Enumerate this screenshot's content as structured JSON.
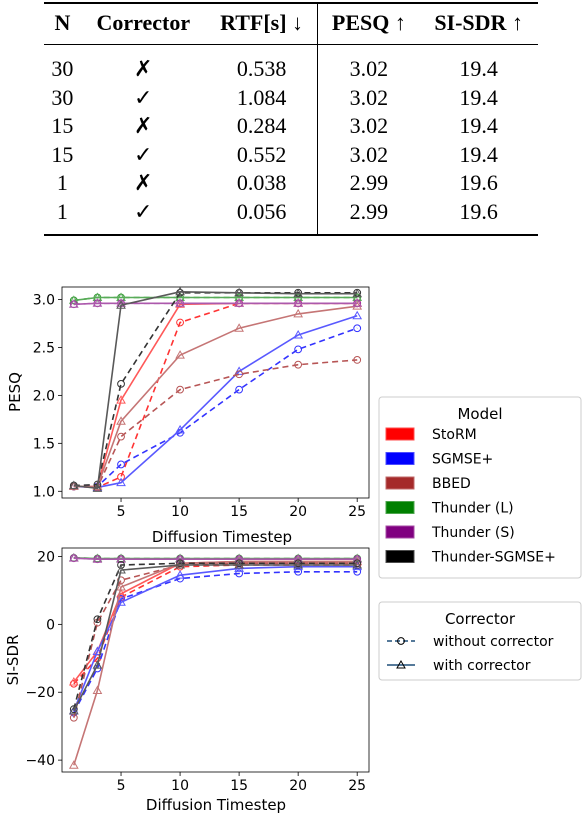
{
  "table": {
    "headers": [
      "N",
      "Corrector",
      "RTF[s] ↓",
      "PESQ ↑",
      "SI-SDR ↑"
    ],
    "rows": [
      [
        "30",
        "✗",
        "0.538",
        "3.02",
        "19.4"
      ],
      [
        "30",
        "✓",
        "1.084",
        "3.02",
        "19.4"
      ],
      [
        "15",
        "✗",
        "0.284",
        "3.02",
        "19.4"
      ],
      [
        "15",
        "✓",
        "0.552",
        "3.02",
        "19.4"
      ],
      [
        "1",
        "✗",
        "0.038",
        "2.99",
        "19.6"
      ],
      [
        "1",
        "✓",
        "0.056",
        "2.99",
        "19.6"
      ]
    ]
  },
  "legend_model": {
    "title": "Model",
    "items": [
      {
        "label": "StoRM",
        "color": "#ff0000"
      },
      {
        "label": "SGMSE+",
        "color": "#0000ff"
      },
      {
        "label": "BBED",
        "color": "#a52a2a"
      },
      {
        "label": "Thunder (L)",
        "color": "#008000"
      },
      {
        "label": "Thunder (S)",
        "color": "#800080"
      },
      {
        "label": "Thunder-SGMSE+",
        "color": "#000000"
      }
    ]
  },
  "legend_corrector": {
    "title": "Corrector",
    "items": [
      {
        "label": "without corrector",
        "style": "dashed",
        "marker": "circle"
      },
      {
        "label": "with corrector",
        "style": "solid",
        "marker": "triangle"
      }
    ]
  },
  "chart_data": [
    {
      "type": "line",
      "title": "",
      "xlabel": "Diffusion Timestep",
      "ylabel": "PESQ",
      "xlim": [
        0,
        26
      ],
      "ylim": [
        0.93,
        3.13
      ],
      "xticks": [
        5,
        10,
        15,
        20,
        25
      ],
      "yticks": [
        1.0,
        1.5,
        2.0,
        2.5,
        3.0
      ],
      "ytick_labels": [
        "1.0",
        "1.5",
        "2.0",
        "2.5",
        "3.0"
      ],
      "x": [
        1,
        3,
        5,
        10,
        15,
        20,
        25
      ],
      "series": [
        {
          "name": "StoRM",
          "corrector": "without corrector",
          "color": "#ff0000",
          "values": [
            1.05,
            1.04,
            1.15,
            2.76,
            2.96,
            2.96,
            2.96
          ]
        },
        {
          "name": "StoRM",
          "corrector": "with corrector",
          "color": "#ff0000",
          "values": [
            1.05,
            1.05,
            1.95,
            2.95,
            2.96,
            2.96,
            2.96
          ]
        },
        {
          "name": "SGMSE+",
          "corrector": "without corrector",
          "color": "#0000ff",
          "values": [
            1.05,
            1.05,
            1.28,
            1.61,
            2.06,
            2.48,
            2.7
          ]
        },
        {
          "name": "SGMSE+",
          "corrector": "with corrector",
          "color": "#0000ff",
          "values": [
            1.05,
            1.04,
            1.09,
            1.64,
            2.25,
            2.63,
            2.83
          ]
        },
        {
          "name": "BBED",
          "corrector": "without corrector",
          "color": "#a52a2a",
          "values": [
            1.05,
            1.04,
            1.57,
            2.06,
            2.22,
            2.32,
            2.37
          ]
        },
        {
          "name": "BBED",
          "corrector": "with corrector",
          "color": "#a52a2a",
          "values": [
            1.05,
            1.05,
            1.73,
            2.42,
            2.7,
            2.85,
            2.93
          ]
        },
        {
          "name": "Thunder (L)",
          "corrector": "without corrector",
          "color": "#008000",
          "values": [
            2.99,
            3.02,
            3.02,
            3.02,
            3.02,
            3.02,
            3.02
          ]
        },
        {
          "name": "Thunder (L)",
          "corrector": "with corrector",
          "color": "#008000",
          "values": [
            2.99,
            3.02,
            3.02,
            3.02,
            3.02,
            3.02,
            3.02
          ]
        },
        {
          "name": "Thunder (S)",
          "corrector": "without corrector",
          "color": "#800080",
          "values": [
            2.95,
            2.96,
            2.96,
            2.96,
            2.96,
            2.96,
            2.96
          ]
        },
        {
          "name": "Thunder (S)",
          "corrector": "with corrector",
          "color": "#800080",
          "values": [
            2.95,
            2.96,
            2.96,
            2.96,
            2.96,
            2.96,
            2.96
          ]
        },
        {
          "name": "Thunder-SGMSE+",
          "corrector": "without corrector",
          "color": "#000000",
          "values": [
            1.06,
            1.07,
            2.12,
            3.07,
            3.07,
            3.07,
            3.07
          ]
        },
        {
          "name": "Thunder-SGMSE+",
          "corrector": "with corrector",
          "color": "#000000",
          "values": [
            1.06,
            1.03,
            2.94,
            3.08,
            3.07,
            3.06,
            3.06
          ]
        }
      ]
    },
    {
      "type": "line",
      "title": "",
      "xlabel": "Diffusion Timestep",
      "ylabel": "SI-SDR",
      "xlim": [
        0,
        26
      ],
      "ylim": [
        -43.5,
        22.5
      ],
      "xticks": [
        5,
        10,
        15,
        20,
        25
      ],
      "yticks": [
        -40,
        -20,
        0,
        20
      ],
      "ytick_labels": [
        "−40",
        "−20",
        "0",
        "20"
      ],
      "x": [
        1,
        3,
        5,
        10,
        15,
        20,
        25
      ],
      "series": [
        {
          "name": "StoRM",
          "corrector": "without corrector",
          "color": "#ff0000",
          "values": [
            -17.5,
            -10.0,
            8.0,
            17.0,
            17.5,
            17.5,
            17.5
          ]
        },
        {
          "name": "StoRM",
          "corrector": "with corrector",
          "color": "#ff0000",
          "values": [
            -17.0,
            -8.0,
            9.0,
            18.0,
            18.5,
            18.5,
            18.5
          ]
        },
        {
          "name": "SGMSE+",
          "corrector": "without corrector",
          "color": "#0000ff",
          "values": [
            -26.0,
            -13.0,
            7.5,
            13.5,
            15.0,
            15.5,
            15.5
          ]
        },
        {
          "name": "SGMSE+",
          "corrector": "with corrector",
          "color": "#0000ff",
          "values": [
            -25.5,
            -8.0,
            6.5,
            14.5,
            16.5,
            17.0,
            17.0
          ]
        },
        {
          "name": "BBED",
          "corrector": "without corrector",
          "color": "#a52a2a",
          "values": [
            -27.5,
            0.5,
            13.0,
            17.5,
            18.0,
            18.0,
            18.0
          ]
        },
        {
          "name": "BBED",
          "corrector": "with corrector",
          "color": "#a52a2a",
          "values": [
            -41.5,
            -19.5,
            11.0,
            18.0,
            18.5,
            18.5,
            18.5
          ]
        },
        {
          "name": "Thunder (L)",
          "corrector": "without corrector",
          "color": "#008000",
          "values": [
            19.6,
            19.4,
            19.4,
            19.4,
            19.4,
            19.4,
            19.4
          ]
        },
        {
          "name": "Thunder (L)",
          "corrector": "with corrector",
          "color": "#008000",
          "values": [
            19.6,
            19.4,
            19.4,
            19.4,
            19.4,
            19.4,
            19.4
          ]
        },
        {
          "name": "Thunder (S)",
          "corrector": "without corrector",
          "color": "#800080",
          "values": [
            19.5,
            19.2,
            19.2,
            19.2,
            19.2,
            19.2,
            19.2
          ]
        },
        {
          "name": "Thunder (S)",
          "corrector": "with corrector",
          "color": "#800080",
          "values": [
            19.5,
            19.2,
            19.2,
            19.2,
            19.2,
            19.2,
            19.2
          ]
        },
        {
          "name": "Thunder-SGMSE+",
          "corrector": "without corrector",
          "color": "#000000",
          "values": [
            -25.0,
            1.5,
            17.5,
            18.0,
            18.0,
            18.0,
            18.0
          ]
        },
        {
          "name": "Thunder-SGMSE+",
          "corrector": "with corrector",
          "color": "#000000",
          "values": [
            -25.5,
            -12.0,
            16.0,
            17.5,
            17.5,
            17.5,
            17.5
          ]
        }
      ]
    }
  ]
}
